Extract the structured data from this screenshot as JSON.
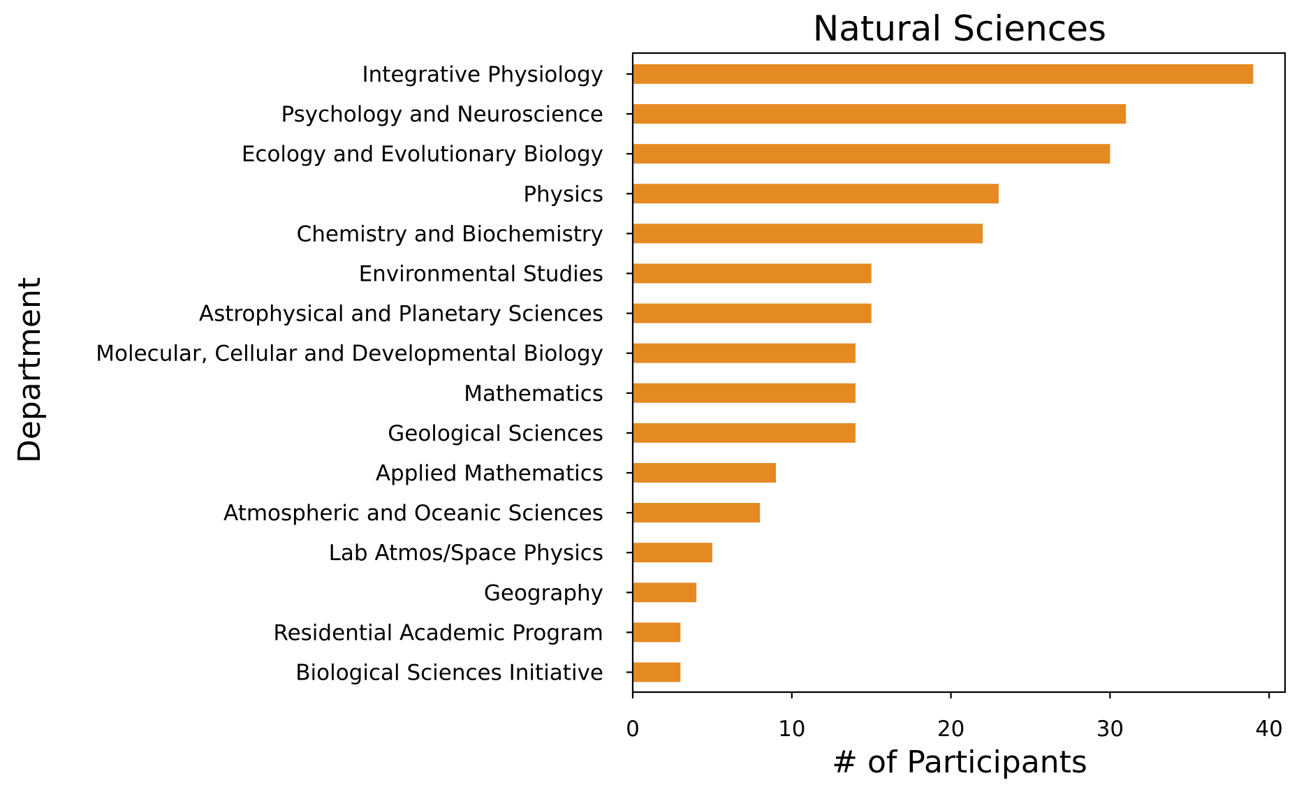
{
  "chart_data": {
    "type": "bar",
    "orientation": "horizontal",
    "title": "Natural Sciences",
    "xlabel": "# of Participants",
    "ylabel": "Department",
    "categories": [
      "Integrative Physiology",
      "Psychology and Neuroscience",
      "Ecology and Evolutionary Biology",
      "Physics",
      "Chemistry and Biochemistry",
      "Environmental Studies",
      "Astrophysical and Planetary Sciences",
      "Molecular, Cellular and Developmental Biology",
      "Mathematics",
      "Geological Sciences",
      "Applied Mathematics",
      "Atmospheric and Oceanic Sciences",
      "Lab Atmos/Space Physics",
      "Geography",
      "Residential Academic Program",
      "Biological Sciences Initiative"
    ],
    "values": [
      39,
      31,
      30,
      23,
      22,
      15,
      15,
      14,
      14,
      14,
      9,
      8,
      5,
      4,
      3,
      3
    ],
    "xlim": [
      0,
      41
    ],
    "xticks": [
      0,
      10,
      20,
      30,
      40
    ],
    "bar_color": "#e58a22",
    "grid": false,
    "legend": "none"
  }
}
